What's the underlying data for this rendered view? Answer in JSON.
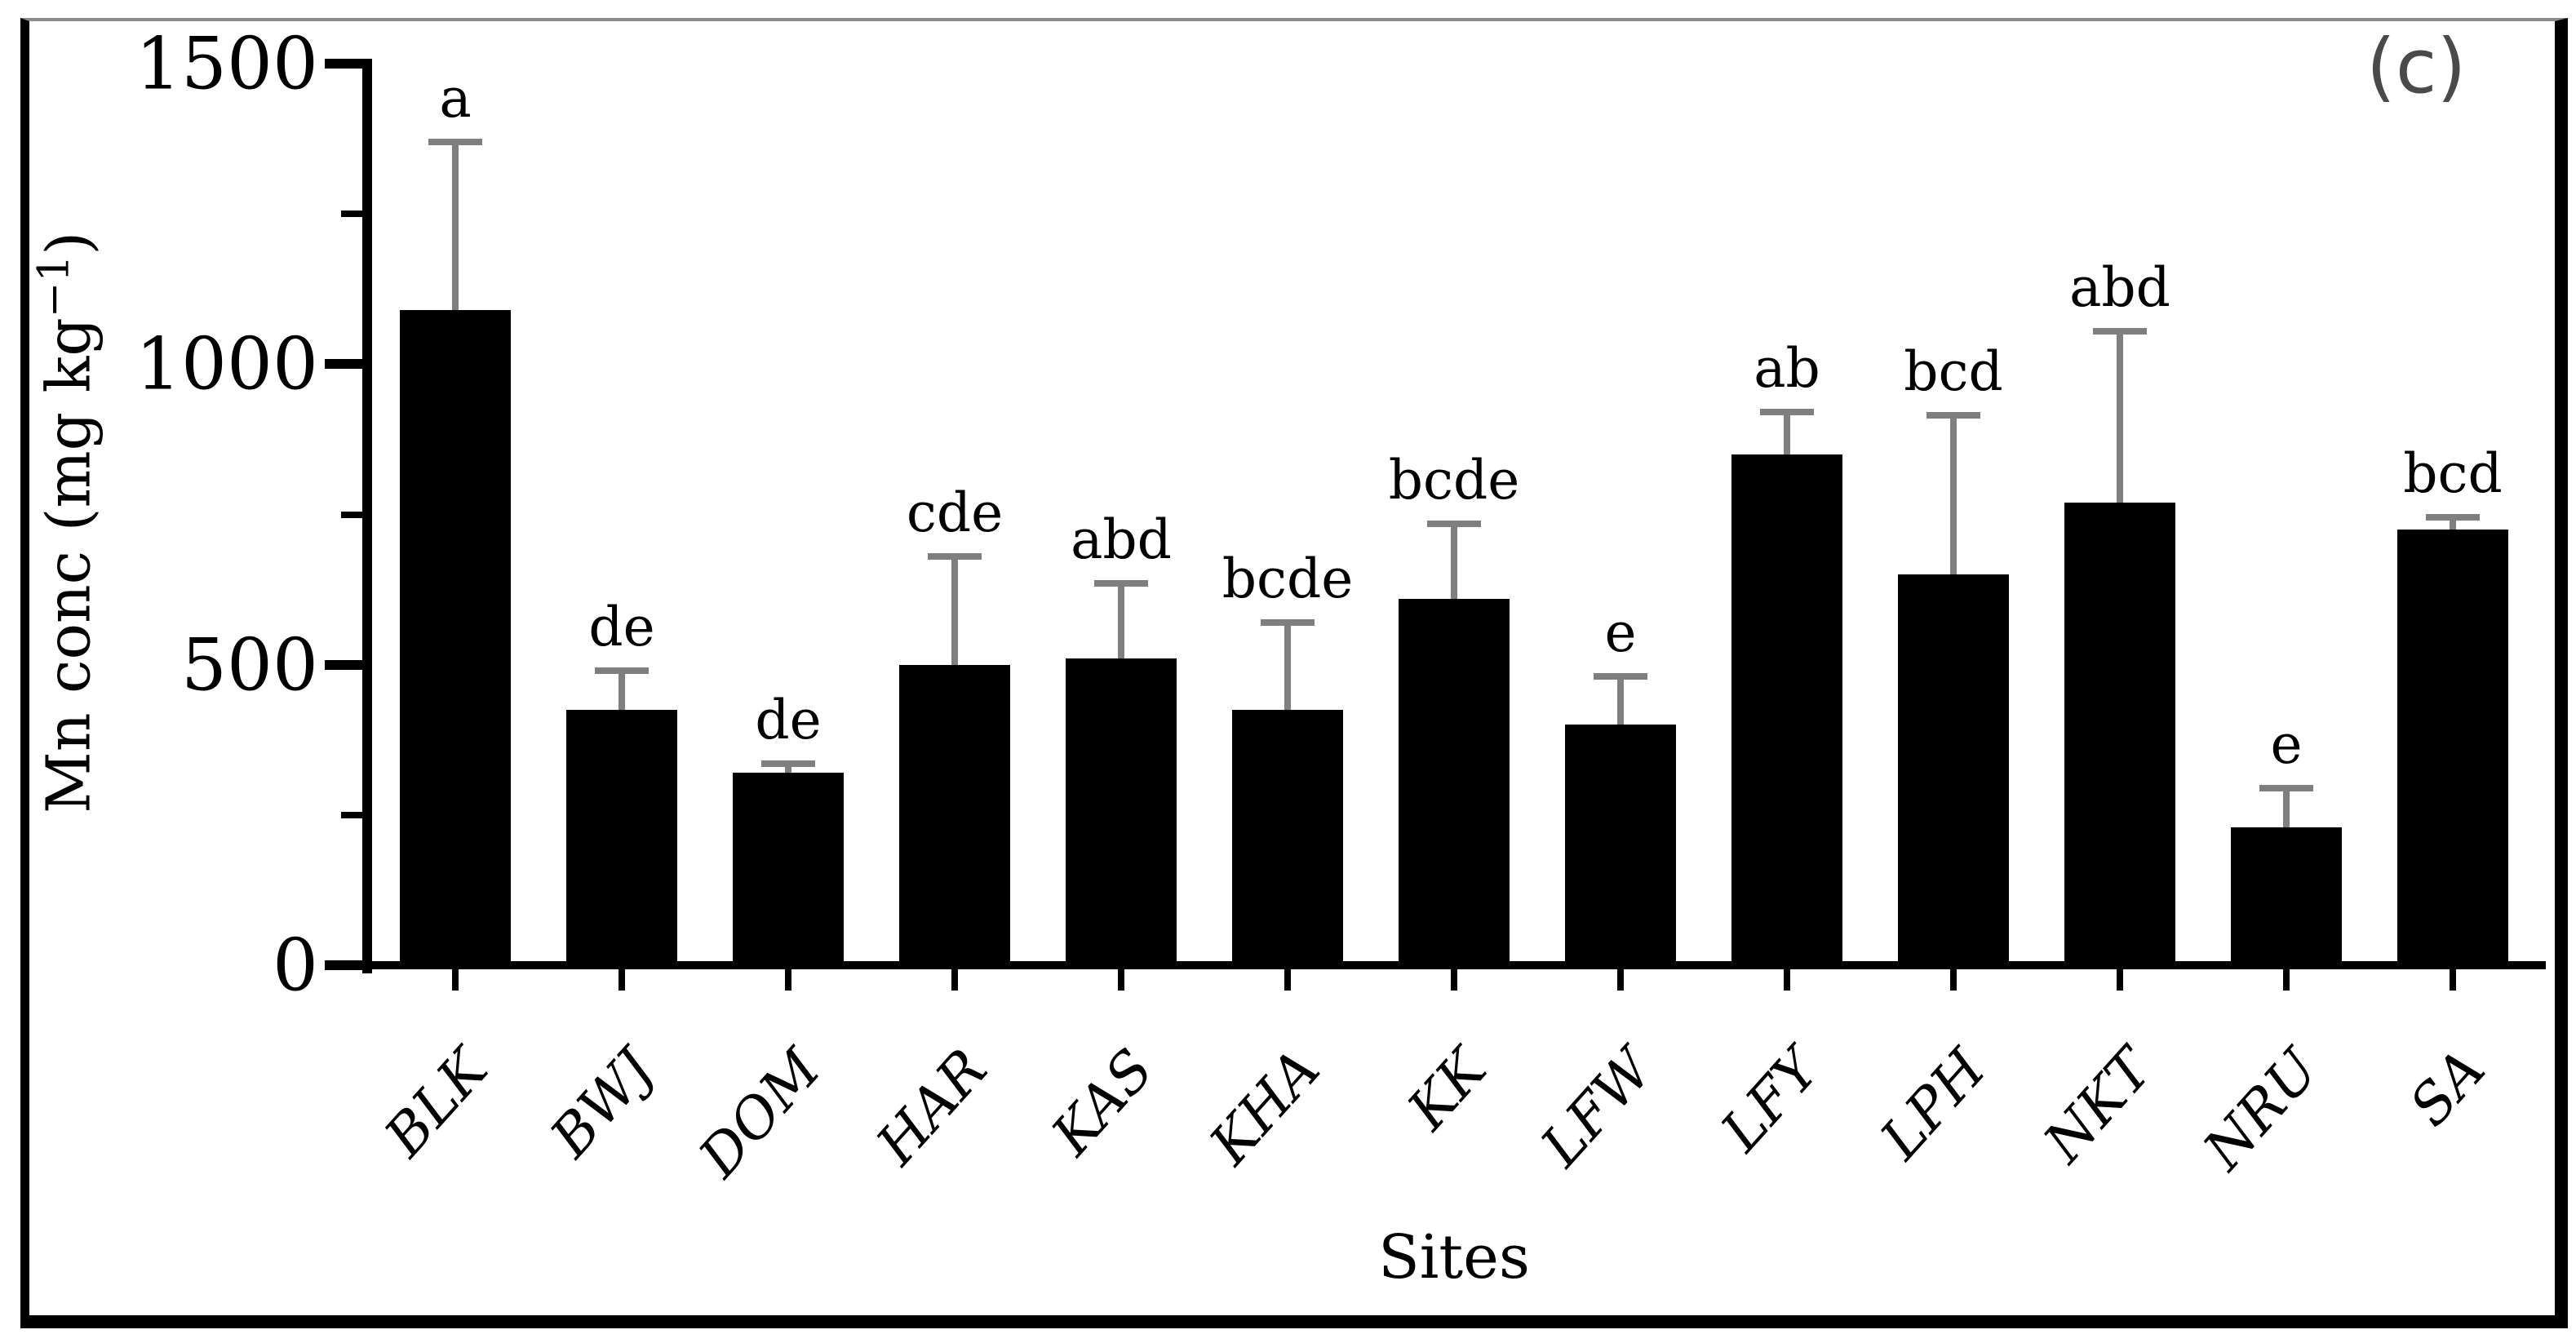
{
  "panel_label": "(c)",
  "axes": {
    "ylabel_main": "Mn conc (mg kg",
    "ylabel_sup": "−1",
    "ylabel_close": ")",
    "xlabel": "Sites"
  },
  "chart_data": {
    "type": "bar",
    "title": "",
    "xlabel": "Sites",
    "ylabel": "Mn conc (mg kg-1)",
    "ylim": [
      0,
      1500
    ],
    "yticks_major": [
      0,
      500,
      1000,
      1500
    ],
    "yticks_minor": [
      250,
      750,
      1250
    ],
    "grid": false,
    "legend": "none",
    "bar_color": "#000000",
    "error_bar_color": "#7f7f7f",
    "categories": [
      "BLK",
      "BWJ",
      "DOM",
      "HAR",
      "KAS",
      "KHA",
      "KK",
      "LFW",
      "LFY",
      "LPH",
      "NKT",
      "NRU",
      "SA"
    ],
    "values": [
      1090,
      425,
      320,
      500,
      510,
      425,
      610,
      400,
      850,
      650,
      770,
      230,
      725
    ],
    "error_sd": [
      280,
      65,
      15,
      180,
      125,
      145,
      125,
      80,
      70,
      265,
      285,
      65,
      20
    ],
    "sig_letters": [
      "a",
      "de",
      "de",
      "cde",
      "abd",
      "bcde",
      "bcde",
      "e",
      "ab",
      "bcd",
      "abd",
      "e",
      "bcd"
    ]
  }
}
